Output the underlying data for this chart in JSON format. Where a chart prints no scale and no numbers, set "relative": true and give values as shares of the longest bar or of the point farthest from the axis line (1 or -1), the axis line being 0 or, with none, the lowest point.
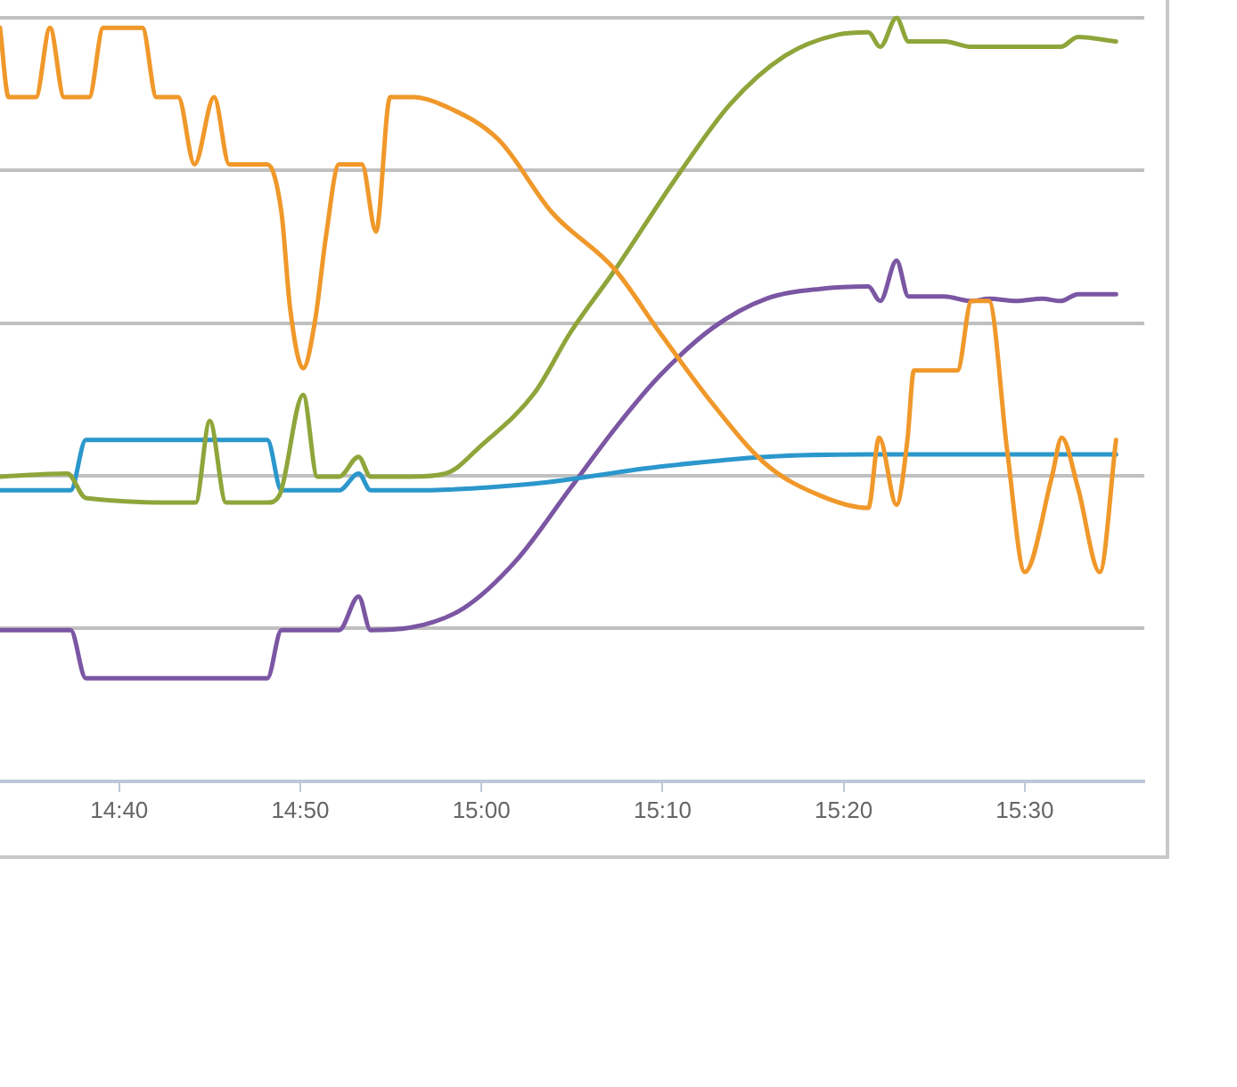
{
  "chart_data": {
    "type": "line",
    "relative": true,
    "grid": "y",
    "legend": false,
    "marker": "none",
    "line_style": "solid",
    "tick_labels": "x",
    "xlim": [
      14.557,
      15.61
    ],
    "xticks": [
      {
        "value": 14.6667,
        "label": "14:40"
      },
      {
        "value": 14.8333,
        "label": "14:50"
      },
      {
        "value": 15,
        "label": "15:00"
      },
      {
        "value": 15.1667,
        "label": "15:10"
      },
      {
        "value": 15.3333,
        "label": "15:20"
      },
      {
        "value": 15.5,
        "label": "15:30"
      }
    ],
    "series": [
      {
        "color": "#f0982a",
        "x": [
          14.557,
          14.565,
          14.59,
          14.603,
          14.616,
          14.639,
          14.652,
          14.688,
          14.701,
          14.721,
          14.736,
          14.754,
          14.768,
          14.803,
          14.816,
          14.824,
          14.836,
          14.847,
          14.857,
          14.869,
          14.89,
          14.903,
          14.916,
          14.938,
          14.967,
          15.016,
          15.065,
          15.123,
          15.164,
          15.213,
          15.262,
          15.312,
          15.356,
          15.366,
          15.382,
          15.392,
          15.398,
          15.438,
          15.451,
          15.467,
          15.484,
          15.5,
          15.525,
          15.534,
          15.549,
          15.569,
          15.584
        ],
        "values": [
          0.987,
          0.896,
          0.896,
          0.987,
          0.896,
          0.896,
          0.987,
          0.987,
          0.896,
          0.896,
          0.808,
          0.896,
          0.808,
          0.808,
          0.745,
          0.619,
          0.541,
          0.604,
          0.714,
          0.808,
          0.808,
          0.72,
          0.896,
          0.896,
          0.884,
          0.84,
          0.745,
          0.67,
          0.588,
          0.494,
          0.415,
          0.374,
          0.358,
          0.45,
          0.362,
          0.447,
          0.538,
          0.538,
          0.629,
          0.629,
          0.431,
          0.274,
          0.399,
          0.45,
          0.384,
          0.274,
          0.447
        ]
      },
      {
        "color": "#8fa53a",
        "x": [
          14.557,
          14.619,
          14.636,
          14.737,
          14.75,
          14.765,
          14.803,
          14.814,
          14.836,
          14.849,
          14.869,
          14.887,
          14.898,
          14.934,
          14.967,
          15.0,
          15.049,
          15.082,
          15.123,
          15.18,
          15.229,
          15.279,
          15.328,
          15.356,
          15.367,
          15.382,
          15.393,
          15.426,
          15.451,
          15.492,
          15.533,
          15.549,
          15.584
        ],
        "values": [
          0.399,
          0.403,
          0.371,
          0.365,
          0.472,
          0.365,
          0.365,
          0.374,
          0.506,
          0.399,
          0.399,
          0.425,
          0.399,
          0.399,
          0.403,
          0.44,
          0.509,
          0.588,
          0.67,
          0.792,
          0.887,
          0.95,
          0.978,
          0.981,
          0.962,
          1,
          0.969,
          0.969,
          0.962,
          0.962,
          0.962,
          0.975,
          0.969
        ]
      },
      {
        "color": "#2b97cc",
        "x": [
          14.557,
          14.622,
          14.636,
          14.803,
          14.816,
          14.869,
          14.887,
          14.898,
          14.934,
          15.049,
          15.164,
          15.262,
          15.356,
          15.584
        ],
        "values": [
          0.381,
          0.381,
          0.447,
          0.447,
          0.381,
          0.381,
          0.403,
          0.381,
          0.381,
          0.39,
          0.412,
          0.425,
          0.428,
          0.428
        ]
      },
      {
        "color": "#7b56a3",
        "x": [
          14.557,
          14.622,
          14.636,
          14.803,
          14.816,
          14.869,
          14.887,
          14.898,
          14.934,
          14.983,
          15.032,
          15.082,
          15.123,
          15.164,
          15.213,
          15.262,
          15.312,
          15.356,
          15.367,
          15.382,
          15.393,
          15.426,
          15.451,
          15.467,
          15.492,
          15.516,
          15.533,
          15.549,
          15.584
        ],
        "values": [
          0.198,
          0.198,
          0.135,
          0.135,
          0.198,
          0.198,
          0.242,
          0.198,
          0.201,
          0.226,
          0.289,
          0.384,
          0.462,
          0.531,
          0.594,
          0.632,
          0.645,
          0.648,
          0.629,
          0.682,
          0.635,
          0.635,
          0.629,
          0.632,
          0.629,
          0.632,
          0.629,
          0.638,
          0.638
        ]
      }
    ]
  }
}
